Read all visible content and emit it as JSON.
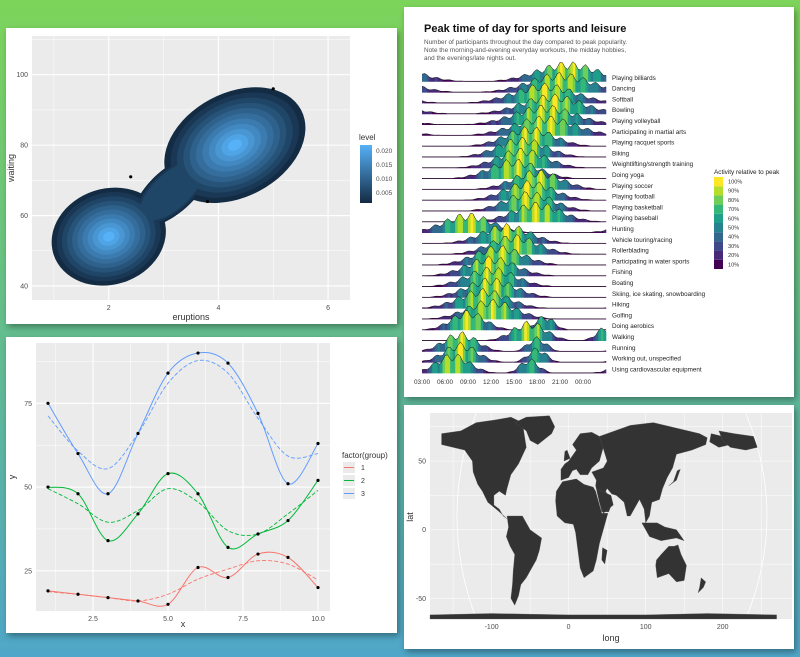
{
  "chart_data": [
    {
      "type": "contour",
      "xlabel": "eruptions",
      "ylabel": "waiting",
      "x_ticks": [
        2,
        4,
        6
      ],
      "y_ticks": [
        40,
        60,
        80,
        100
      ],
      "xlim": [
        0.6,
        6.4
      ],
      "ylim": [
        36,
        111
      ],
      "legend_title": "level",
      "legend_labels": [
        "0.020",
        "0.015",
        "0.010",
        "0.005"
      ],
      "points": [
        {
          "x": 2.4,
          "y": 71
        },
        {
          "x": 3.8,
          "y": 64
        },
        {
          "x": 5.0,
          "y": 96
        }
      ],
      "density_peaks": [
        {
          "x": 2.0,
          "y": 54
        },
        {
          "x": 4.3,
          "y": 80
        }
      ]
    },
    {
      "type": "area",
      "title": "Peak time of day for sports and leisure",
      "subtitle": [
        "Number of participants throughout the day compared to peak popularity.",
        "Note the morning-and-evening everyday workouts, the midday hobbies,",
        "and the evenings/late nights out."
      ],
      "x_ticks": [
        "03:00",
        "06:00",
        "09:00",
        "12:00",
        "15:00",
        "18:00",
        "21:00",
        "00:00"
      ],
      "categories": [
        "Playing billiards",
        "Dancing",
        "Softball",
        "Bowling",
        "Playing volleyball",
        "Participating in martial arts",
        "Playing racquet sports",
        "Biking",
        "Weightlifting/strength training",
        "Doing yoga",
        "Playing soccer",
        "Playing football",
        "Playing basketball",
        "Playing baseball",
        "Hunting",
        "Vehicle touring/racing",
        "Rollerblading",
        "Participating in water sports",
        "Fishing",
        "Boating",
        "Skiing, ice skating, snowboarding",
        "Hiking",
        "Golfing",
        "Doing aerobics",
        "Walking",
        "Running",
        "Working out, unspecified",
        "Using cardiovascular equipment"
      ],
      "peak_hour": [
        22,
        21,
        19,
        20,
        19,
        19,
        17,
        16,
        16,
        15,
        18,
        17,
        17,
        18,
        9,
        14,
        15,
        13,
        12,
        12,
        12,
        11,
        12,
        9,
        17,
        8,
        8,
        7
      ],
      "legend_title": "Activity relative to peak",
      "legend_labels": [
        "10%",
        "20%",
        "30%",
        "40%",
        "50%",
        "60%",
        "70%",
        "80%",
        "90%",
        "100%"
      ],
      "colors": [
        "#440154",
        "#482878",
        "#3e4989",
        "#31688e",
        "#26828e",
        "#1f9e89",
        "#35b779",
        "#6ece58",
        "#b5de2b",
        "#fde725"
      ]
    },
    {
      "type": "line",
      "xlabel": "x",
      "ylabel": "y",
      "x_ticks": [
        "2.5",
        "5.0",
        "7.5",
        "10.0"
      ],
      "y_ticks": [
        "25",
        "50",
        "75"
      ],
      "xlim": [
        0.6,
        10.4
      ],
      "ylim": [
        13,
        93
      ],
      "legend_title": "factor(group)",
      "x": [
        1,
        2,
        3,
        4,
        5,
        6,
        7,
        8,
        9,
        10
      ],
      "series": [
        {
          "name": "1",
          "color": "#f8766d",
          "values": [
            19,
            18,
            17,
            16,
            15,
            26,
            23,
            30,
            29,
            20
          ]
        },
        {
          "name": "2",
          "color": "#00ba38",
          "values": [
            50,
            48,
            34,
            42,
            54,
            48,
            32,
            36,
            40,
            52
          ]
        },
        {
          "name": "3",
          "color": "#619cff",
          "values": [
            75,
            60,
            48,
            66,
            84,
            90,
            87,
            72,
            51,
            63
          ]
        }
      ]
    },
    {
      "type": "map",
      "xlabel": "long",
      "ylabel": "lat",
      "x_ticks": [
        "-100",
        "0",
        "100",
        "200"
      ],
      "y_ticks": [
        "50",
        "0",
        "-50"
      ],
      "xlim": [
        -180,
        290
      ],
      "ylim": [
        -65,
        85
      ]
    }
  ]
}
